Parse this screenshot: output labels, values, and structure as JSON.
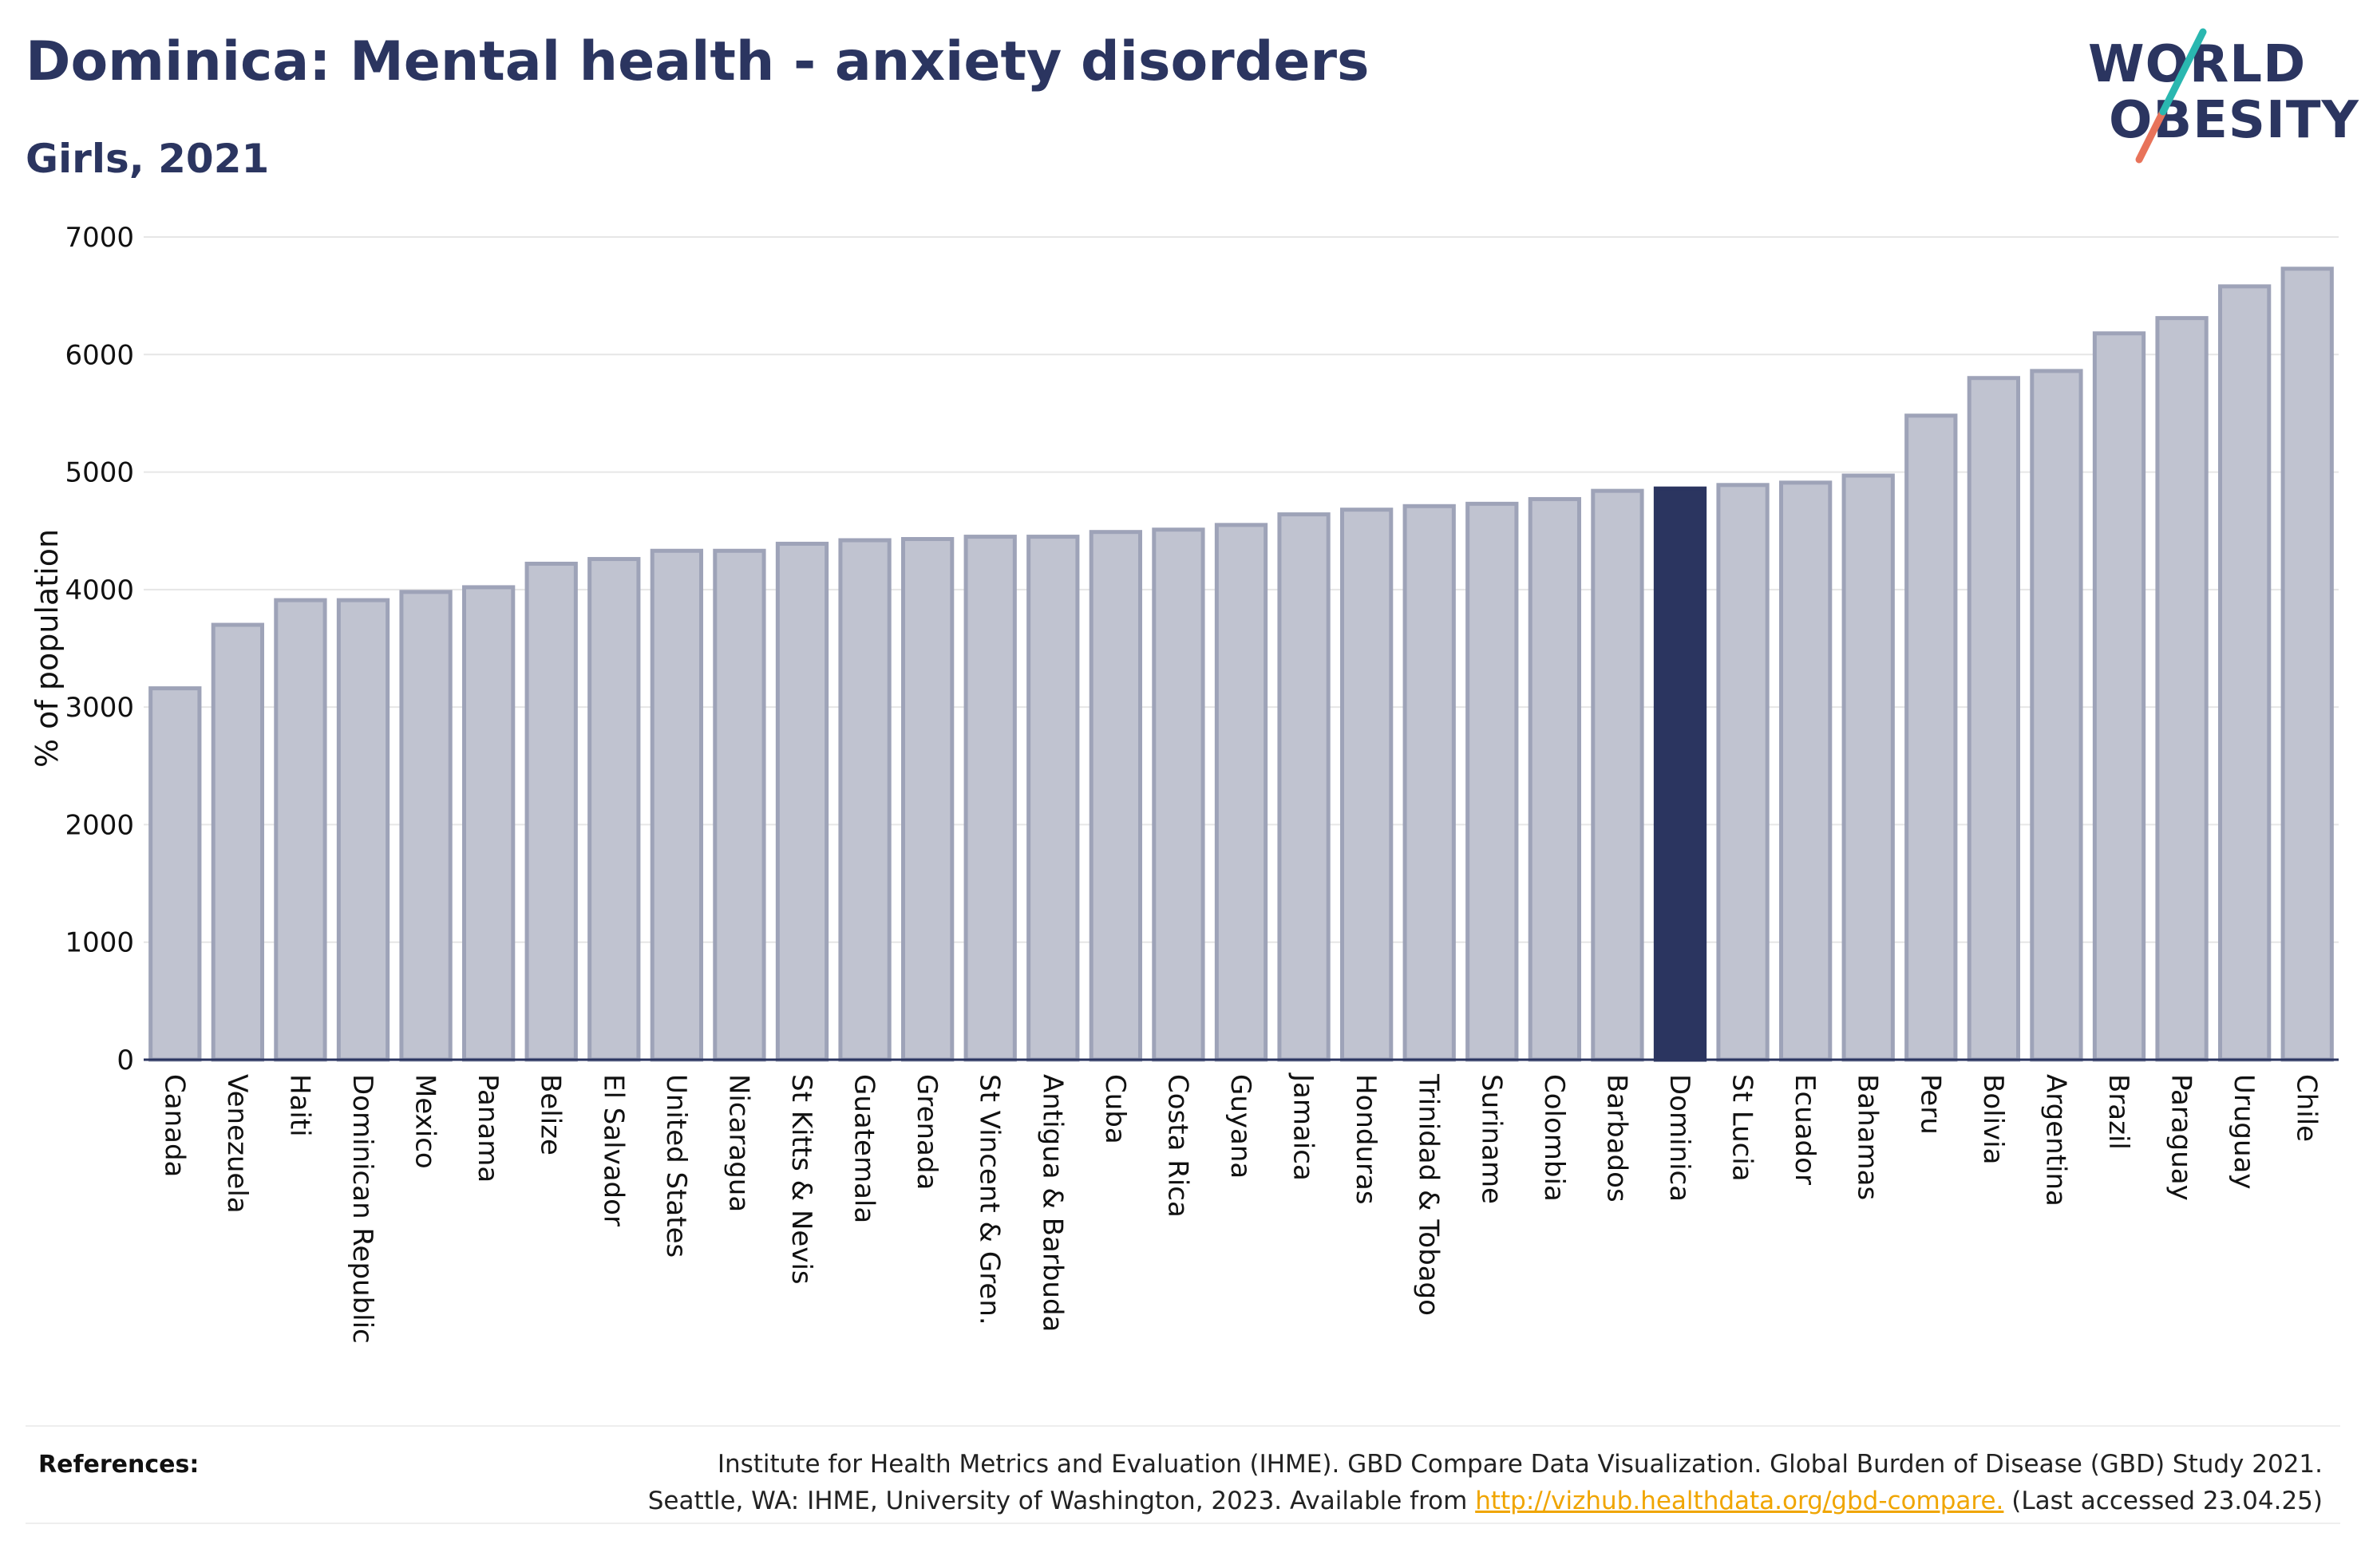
{
  "title": "Dominica: Mental health - anxiety disorders",
  "subtitle": "Girls, 2021",
  "logo": {
    "line1": "WORLD",
    "line2": "OBESITY"
  },
  "colors": {
    "bar": "#c0c3d0",
    "bar_edge": "#9ea3b8",
    "highlight": "#2b3560",
    "text": "#2b3560"
  },
  "chart_data": {
    "type": "bar",
    "title": "Dominica: Mental health - anxiety disorders",
    "subtitle": "Girls, 2021",
    "xlabel": "",
    "ylabel": "% of population",
    "ylim": [
      0,
      7000
    ],
    "yticks": [
      0,
      1000,
      2000,
      3000,
      4000,
      5000,
      6000,
      7000
    ],
    "grid": true,
    "highlight": "Dominica",
    "categories": [
      "Canada",
      "Venezuela",
      "Haiti",
      "Dominican Republic",
      "Mexico",
      "Panama",
      "Belize",
      "El Salvador",
      "United States",
      "Nicaragua",
      "St Kitts & Nevis",
      "Guatemala",
      "Grenada",
      "St Vincent & Gren.",
      "Antigua & Barbuda",
      "Cuba",
      "Costa Rica",
      "Guyana",
      "Jamaica",
      "Honduras",
      "Trinidad & Tobago",
      "Suriname",
      "Colombia",
      "Barbados",
      "Dominica",
      "St Lucia",
      "Ecuador",
      "Bahamas",
      "Peru",
      "Bolivia",
      "Argentina",
      "Brazil",
      "Paraguay",
      "Uruguay",
      "Chile"
    ],
    "values": [
      3160,
      3700,
      3910,
      3910,
      3980,
      4020,
      4220,
      4260,
      4330,
      4330,
      4390,
      4420,
      4430,
      4450,
      4450,
      4490,
      4510,
      4550,
      4640,
      4680,
      4710,
      4730,
      4770,
      4840,
      4860,
      4890,
      4910,
      4970,
      5480,
      5800,
      5860,
      6180,
      6310,
      6580,
      6730
    ]
  },
  "references": {
    "label": "References:",
    "line1": "Institute for Health Metrics and Evaluation (IHME). GBD Compare Data Visualization. Global Burden of Disease (GBD) Study 2021.",
    "line2_prefix": "Seattle, WA: IHME, University of Washington, 2023. Available from ",
    "link": "http://vizhub.healthdata.org/gbd-compare.",
    "line2_suffix": " (Last accessed 23.04.25)"
  }
}
